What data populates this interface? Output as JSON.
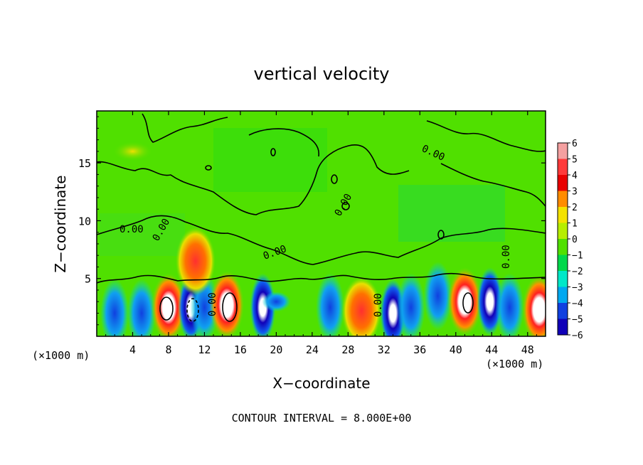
{
  "chart_data": {
    "type": "heatmap",
    "title": "vertical velocity",
    "xlabel": "X−coordinate",
    "ylabel": "Z−coordinate",
    "x_unit_left": "(×1000 m)",
    "x_unit_right": "(×1000 m)",
    "xlim": [
      0,
      50
    ],
    "ylim": [
      0,
      19.5
    ],
    "x_ticks": [
      4,
      8,
      12,
      16,
      20,
      24,
      28,
      32,
      36,
      40,
      44,
      48
    ],
    "y_ticks": [
      5,
      10,
      15
    ],
    "colorbar": {
      "levels": [
        6,
        5,
        4,
        3,
        2,
        1,
        0,
        -1,
        -2,
        -3,
        -4,
        -5,
        -6
      ],
      "colors": [
        "#f4a0a0",
        "#ff3a3a",
        "#e80000",
        "#ff8c00",
        "#f4e200",
        "#b6ee00",
        "#50e000",
        "#00d84a",
        "#00e8c8",
        "#00a8f0",
        "#1040e0",
        "#1000b8",
        "#7a00b0"
      ]
    },
    "contour_interval_label": "CONTOUR INTERVAL = 8.000E+00",
    "contour_labels": [
      "0.00",
      "0.00",
      "0.00",
      "0.00",
      "0.00",
      "0.00",
      "0.00",
      "0.00"
    ],
    "cells": [
      {
        "x": 2,
        "z": 2,
        "w": -3
      },
      {
        "x": 5,
        "z": 2,
        "w": -4
      },
      {
        "x": 8,
        "z": 2.5,
        "w": 6
      },
      {
        "x": 10.5,
        "z": 2.5,
        "w": -5
      },
      {
        "x": 12,
        "z": 2.5,
        "w": -4
      },
      {
        "x": 14.5,
        "z": 2.7,
        "w": 6
      },
      {
        "x": 18.5,
        "z": 2.5,
        "w": -6
      },
      {
        "x": 20,
        "z": 3,
        "w": -2
      },
      {
        "x": 26,
        "z": 2.5,
        "w": -3
      },
      {
        "x": 29.5,
        "z": 2.2,
        "w": 4
      },
      {
        "x": 33,
        "z": 2,
        "w": -6
      },
      {
        "x": 35,
        "z": 2.5,
        "w": -4
      },
      {
        "x": 38,
        "z": 3.5,
        "w": -3
      },
      {
        "x": 41,
        "z": 3,
        "w": 6
      },
      {
        "x": 43.8,
        "z": 3,
        "w": -6
      },
      {
        "x": 46,
        "z": 2.5,
        "w": -4
      },
      {
        "x": 49.3,
        "z": 2.3,
        "w": 6
      },
      {
        "x": 11,
        "z": 6.5,
        "w": 3
      },
      {
        "x": 4,
        "z": 16,
        "w": 1
      }
    ]
  }
}
